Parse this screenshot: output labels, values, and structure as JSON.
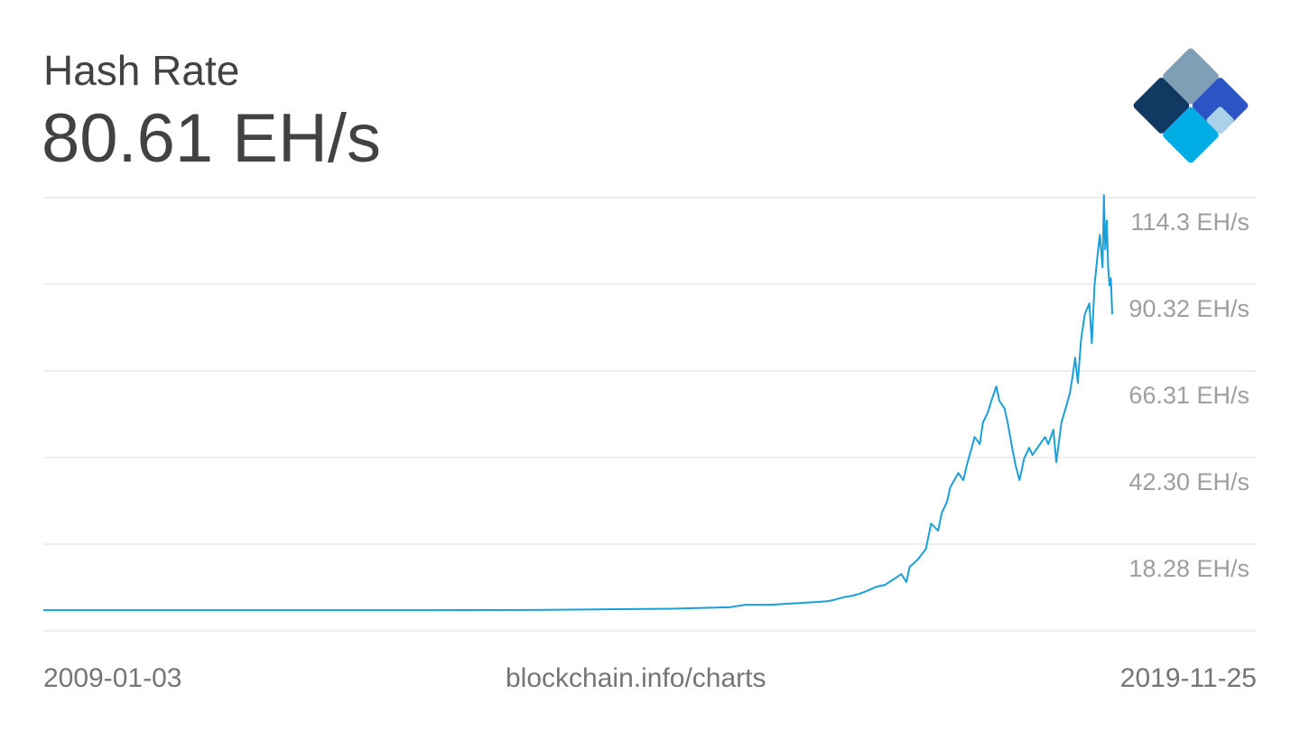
{
  "header": {
    "title": "Hash Rate",
    "value": "80.61 EH/s"
  },
  "logo": {
    "icon": "blockchain-diamond-logo",
    "colors": {
      "top": "#7f9fb7",
      "left": "#123962",
      "right": "#2b54c5",
      "bottom": "#00aee6",
      "right_tip": "#a9d1ea"
    }
  },
  "footer": {
    "start_date": "2009-01-03",
    "source": "blockchain.info/charts",
    "end_date": "2019-11-25"
  },
  "chart_data": {
    "type": "line",
    "title": "Hash Rate",
    "unit": "EH/s",
    "color": "#1a9fd8",
    "grid_color": "#dddddd",
    "ytick_color": "#9e9e9e",
    "yticks": [
      {
        "value": 114.3,
        "label": "114.3 EH/s"
      },
      {
        "value": 90.32,
        "label": "90.32 EH/s"
      },
      {
        "value": 66.31,
        "label": "66.31 EH/s"
      },
      {
        "value": 42.3,
        "label": "42.30 EH/s"
      },
      {
        "value": 18.28,
        "label": "18.28 EH/s"
      }
    ],
    "ylim": [
      -5.72,
      114.3
    ],
    "xlim": [
      "2009-01-03",
      "2019-11-25"
    ],
    "grid": true,
    "series": [
      {
        "values": [
          [
            "2009-01-03",
            0
          ],
          [
            "2010-01-01",
            0
          ],
          [
            "2011-01-01",
            0
          ],
          [
            "2012-01-01",
            0
          ],
          [
            "2013-01-01",
            0
          ],
          [
            "2014-01-01",
            0.05
          ],
          [
            "2015-01-01",
            0.3
          ],
          [
            "2015-06-01",
            0.4
          ],
          [
            "2016-01-01",
            0.8
          ],
          [
            "2016-03-01",
            1.5
          ],
          [
            "2016-06-01",
            1.5
          ],
          [
            "2016-09-01",
            1.9
          ],
          [
            "2016-12-01",
            2.3
          ],
          [
            "2017-01-01",
            2.5
          ],
          [
            "2017-02-01",
            3.0
          ],
          [
            "2017-03-01",
            3.6
          ],
          [
            "2017-04-01",
            4.0
          ],
          [
            "2017-05-01",
            4.6
          ],
          [
            "2017-06-01",
            5.5
          ],
          [
            "2017-07-01",
            6.5
          ],
          [
            "2017-08-01",
            7.0
          ],
          [
            "2017-09-01",
            8.5
          ],
          [
            "2017-10-01",
            10.0
          ],
          [
            "2017-10-20",
            7.8
          ],
          [
            "2017-11-01",
            12.0
          ],
          [
            "2017-12-01",
            14.0
          ],
          [
            "2018-01-01",
            17.0
          ],
          [
            "2018-01-20",
            24.0
          ],
          [
            "2018-02-15",
            22.0
          ],
          [
            "2018-03-01",
            27.0
          ],
          [
            "2018-03-20",
            30.0
          ],
          [
            "2018-04-01",
            34.0
          ],
          [
            "2018-05-01",
            38.0
          ],
          [
            "2018-05-20",
            36.0
          ],
          [
            "2018-06-01",
            40.0
          ],
          [
            "2018-06-20",
            45.0
          ],
          [
            "2018-07-01",
            48.0
          ],
          [
            "2018-07-20",
            46.0
          ],
          [
            "2018-08-01",
            52.0
          ],
          [
            "2018-08-20",
            55.0
          ],
          [
            "2018-09-01",
            58.0
          ],
          [
            "2018-09-20",
            62.0
          ],
          [
            "2018-10-01",
            58.0
          ],
          [
            "2018-10-20",
            56.0
          ],
          [
            "2018-11-01",
            52.0
          ],
          [
            "2018-11-15",
            46.0
          ],
          [
            "2018-12-01",
            40.0
          ],
          [
            "2018-12-15",
            36.0
          ],
          [
            "2019-01-01",
            42.0
          ],
          [
            "2019-01-20",
            45.0
          ],
          [
            "2019-02-01",
            43.0
          ],
          [
            "2019-02-20",
            45.0
          ],
          [
            "2019-03-01",
            46.0
          ],
          [
            "2019-03-20",
            48.0
          ],
          [
            "2019-04-01",
            46.0
          ],
          [
            "2019-04-20",
            50.0
          ],
          [
            "2019-05-01",
            41.0
          ],
          [
            "2019-05-20",
            52.0
          ],
          [
            "2019-06-01",
            55.0
          ],
          [
            "2019-06-20",
            60.0
          ],
          [
            "2019-07-01",
            65.0
          ],
          [
            "2019-07-10",
            70.0
          ],
          [
            "2019-07-20",
            63.0
          ],
          [
            "2019-08-01",
            75.0
          ],
          [
            "2019-08-15",
            82.0
          ],
          [
            "2019-09-01",
            85.0
          ],
          [
            "2019-09-10",
            74.0
          ],
          [
            "2019-09-20",
            90.0
          ],
          [
            "2019-10-01",
            98.0
          ],
          [
            "2019-10-10",
            104.0
          ],
          [
            "2019-10-20",
            95.0
          ],
          [
            "2019-10-25",
            115.0
          ],
          [
            "2019-10-30",
            100.0
          ],
          [
            "2019-11-05",
            108.0
          ],
          [
            "2019-11-10",
            95.0
          ],
          [
            "2019-11-15",
            90.0
          ],
          [
            "2019-11-20",
            92.0
          ],
          [
            "2019-11-25",
            82.0
          ]
        ]
      }
    ]
  }
}
